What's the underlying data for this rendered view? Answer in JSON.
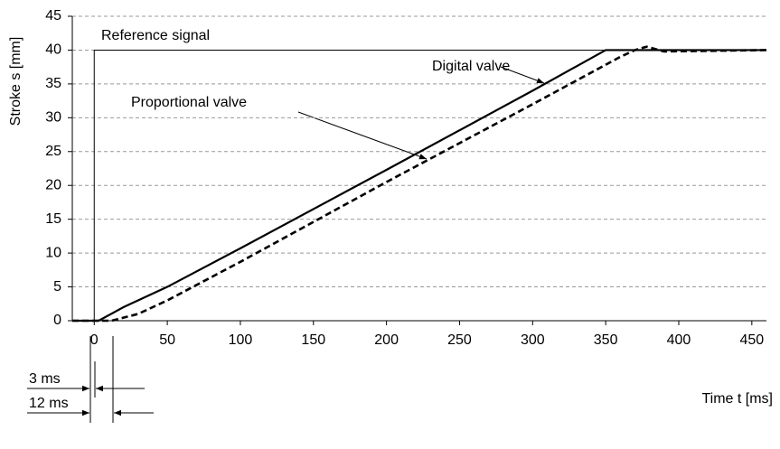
{
  "chart_data": {
    "type": "line",
    "xlabel": "Time t [ms]",
    "ylabel": "Stroke s [mm]",
    "xlim": [
      -15,
      460
    ],
    "ylim": [
      0,
      45
    ],
    "xticks": [
      0,
      50,
      100,
      150,
      200,
      250,
      300,
      350,
      400,
      450
    ],
    "yticks": [
      0,
      5,
      10,
      15,
      20,
      25,
      30,
      35,
      40,
      45
    ],
    "grid": true,
    "series": [
      {
        "name": "Reference signal",
        "color": "#000000",
        "style": "thin",
        "x": [
          -15,
          0,
          0,
          460
        ],
        "values": [
          0,
          0,
          40,
          40
        ]
      },
      {
        "name": "Digital valve",
        "color": "#000000",
        "style": "solid",
        "x": [
          -15,
          3,
          20,
          50,
          100,
          200,
          300,
          350,
          460
        ],
        "values": [
          0,
          0,
          2,
          5,
          10.7,
          22.3,
          34,
          40,
          40
        ]
      },
      {
        "name": "Proportional valve",
        "color": "#000000",
        "style": "dashed",
        "x": [
          -15,
          12,
          30,
          50,
          100,
          200,
          300,
          360,
          370,
          378,
          390,
          460
        ],
        "values": [
          0,
          0,
          1,
          3,
          8.7,
          20.5,
          32,
          39,
          40,
          40.5,
          39.8,
          40
        ]
      }
    ],
    "annotations": [
      "3 ms",
      "12 ms"
    ]
  }
}
